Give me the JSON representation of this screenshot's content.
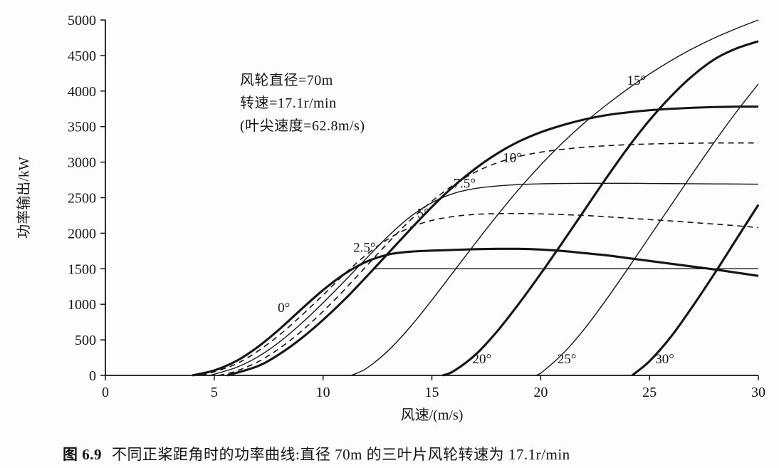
{
  "caption": {
    "prefix": "图 6.9",
    "text": "不同正桨距角时的功率曲线:直径 70m 的三叶片风轮转速为 17.1r/min"
  },
  "chart_data": {
    "type": "line",
    "title": "",
    "xlabel": "风速/(m/s)",
    "ylabel": "功率输出/kW",
    "xlim": [
      0,
      30
    ],
    "ylim": [
      0,
      5000
    ],
    "xticks": [
      0,
      5,
      10,
      15,
      20,
      25,
      30
    ],
    "yticks": [
      0,
      500,
      1000,
      1500,
      2000,
      2500,
      3000,
      3500,
      4000,
      4500,
      5000
    ],
    "grid": false,
    "annotation_lines": [
      "风轮直径=70m",
      "转速=17.1r/min",
      "(叶尖速度=62.8m/s)"
    ],
    "rated_power_line": {
      "y": 1500,
      "x_start": 12.3,
      "x_end": 30
    },
    "series": [
      {
        "name": "0°",
        "style": "thick",
        "points": [
          [
            4,
            0
          ],
          [
            5,
            70
          ],
          [
            6,
            200
          ],
          [
            7,
            400
          ],
          [
            8,
            650
          ],
          [
            9,
            930
          ],
          [
            10,
            1200
          ],
          [
            11,
            1430
          ],
          [
            12,
            1600
          ],
          [
            13,
            1700
          ],
          [
            14,
            1740
          ],
          [
            15,
            1755
          ],
          [
            16,
            1765
          ],
          [
            17,
            1775
          ],
          [
            18,
            1780
          ],
          [
            19,
            1780
          ],
          [
            20,
            1770
          ],
          [
            21,
            1750
          ],
          [
            22,
            1720
          ],
          [
            23,
            1690
          ],
          [
            24,
            1650
          ],
          [
            25,
            1610
          ],
          [
            26,
            1570
          ],
          [
            27,
            1530
          ],
          [
            28,
            1490
          ],
          [
            29,
            1445
          ],
          [
            30,
            1400
          ]
        ]
      },
      {
        "name": "2.5°",
        "style": "dashed",
        "points": [
          [
            4.4,
            0
          ],
          [
            5,
            50
          ],
          [
            6,
            160
          ],
          [
            7,
            340
          ],
          [
            8,
            570
          ],
          [
            9,
            840
          ],
          [
            10,
            1130
          ],
          [
            11,
            1430
          ],
          [
            12,
            1700
          ],
          [
            13,
            1920
          ],
          [
            14,
            2080
          ],
          [
            15,
            2180
          ],
          [
            16,
            2235
          ],
          [
            17,
            2265
          ],
          [
            18,
            2275
          ],
          [
            19,
            2278
          ],
          [
            20,
            2272
          ],
          [
            21,
            2262
          ],
          [
            22,
            2250
          ],
          [
            23,
            2232
          ],
          [
            24,
            2212
          ],
          [
            25,
            2192
          ],
          [
            26,
            2172
          ],
          [
            27,
            2150
          ],
          [
            28,
            2128
          ],
          [
            29,
            2105
          ],
          [
            30,
            2080
          ]
        ]
      },
      {
        "name": "5°",
        "style": "thin",
        "points": [
          [
            4.8,
            0
          ],
          [
            6,
            110
          ],
          [
            7,
            260
          ],
          [
            8,
            470
          ],
          [
            9,
            730
          ],
          [
            10,
            1020
          ],
          [
            11,
            1330
          ],
          [
            12,
            1650
          ],
          [
            13,
            1960
          ],
          [
            14,
            2230
          ],
          [
            15,
            2430
          ],
          [
            16,
            2560
          ],
          [
            17,
            2630
          ],
          [
            18,
            2665
          ],
          [
            19,
            2685
          ],
          [
            20,
            2695
          ],
          [
            21,
            2700
          ],
          [
            22,
            2702
          ],
          [
            23,
            2702
          ],
          [
            24,
            2702
          ],
          [
            25,
            2700
          ],
          [
            26,
            2698
          ],
          [
            27,
            2696
          ],
          [
            28,
            2694
          ],
          [
            29,
            2692
          ],
          [
            30,
            2690
          ]
        ]
      },
      {
        "name": "7.5°",
        "style": "dashed",
        "points": [
          [
            5.2,
            0
          ],
          [
            6,
            60
          ],
          [
            7,
            190
          ],
          [
            8,
            380
          ],
          [
            9,
            620
          ],
          [
            10,
            900
          ],
          [
            11,
            1210
          ],
          [
            12,
            1540
          ],
          [
            13,
            1870
          ],
          [
            14,
            2180
          ],
          [
            15,
            2450
          ],
          [
            16,
            2680
          ],
          [
            17,
            2860
          ],
          [
            18,
            2990
          ],
          [
            19,
            3080
          ],
          [
            20,
            3140
          ],
          [
            21,
            3180
          ],
          [
            22,
            3210
          ],
          [
            23,
            3230
          ],
          [
            24,
            3245
          ],
          [
            25,
            3255
          ],
          [
            26,
            3262
          ],
          [
            27,
            3266
          ],
          [
            28,
            3269
          ],
          [
            29,
            3270
          ],
          [
            30,
            3270
          ]
        ]
      },
      {
        "name": "10°",
        "style": "thick",
        "points": [
          [
            5.6,
            0
          ],
          [
            7,
            130
          ],
          [
            8,
            300
          ],
          [
            9,
            520
          ],
          [
            10,
            780
          ],
          [
            11,
            1070
          ],
          [
            12,
            1390
          ],
          [
            13,
            1720
          ],
          [
            14,
            2050
          ],
          [
            15,
            2370
          ],
          [
            16,
            2660
          ],
          [
            17,
            2910
          ],
          [
            18,
            3120
          ],
          [
            19,
            3290
          ],
          [
            20,
            3420
          ],
          [
            21,
            3520
          ],
          [
            22,
            3600
          ],
          [
            23,
            3660
          ],
          [
            24,
            3700
          ],
          [
            25,
            3730
          ],
          [
            26,
            3750
          ],
          [
            27,
            3765
          ],
          [
            28,
            3775
          ],
          [
            29,
            3780
          ],
          [
            30,
            3780
          ]
        ]
      },
      {
        "name": "15°",
        "style": "thin",
        "points": [
          [
            11.3,
            0
          ],
          [
            12,
            100
          ],
          [
            13,
            350
          ],
          [
            14,
            680
          ],
          [
            15,
            1060
          ],
          [
            16,
            1460
          ],
          [
            17,
            1860
          ],
          [
            18,
            2250
          ],
          [
            19,
            2620
          ],
          [
            20,
            2960
          ],
          [
            21,
            3270
          ],
          [
            22,
            3550
          ],
          [
            23,
            3800
          ],
          [
            24,
            4030
          ],
          [
            25,
            4240
          ],
          [
            26,
            4430
          ],
          [
            27,
            4600
          ],
          [
            28,
            4750
          ],
          [
            29,
            4880
          ],
          [
            30,
            5000
          ]
        ]
      },
      {
        "name": "20°",
        "style": "thick",
        "points": [
          [
            15.5,
            0
          ],
          [
            16,
            60
          ],
          [
            17,
            290
          ],
          [
            18,
            620
          ],
          [
            19,
            1010
          ],
          [
            20,
            1430
          ],
          [
            21,
            1870
          ],
          [
            22,
            2320
          ],
          [
            23,
            2770
          ],
          [
            24,
            3200
          ],
          [
            25,
            3590
          ],
          [
            26,
            3930
          ],
          [
            27,
            4220
          ],
          [
            28,
            4450
          ],
          [
            29,
            4600
          ],
          [
            30,
            4700
          ]
        ]
      },
      {
        "name": "25°",
        "style": "thin",
        "points": [
          [
            19.8,
            0
          ],
          [
            20,
            30
          ],
          [
            21,
            300
          ],
          [
            22,
            650
          ],
          [
            23,
            1060
          ],
          [
            24,
            1500
          ],
          [
            25,
            1950
          ],
          [
            26,
            2400
          ],
          [
            27,
            2850
          ],
          [
            28,
            3290
          ],
          [
            29,
            3710
          ],
          [
            30,
            4100
          ]
        ]
      },
      {
        "name": "30°",
        "style": "thick",
        "points": [
          [
            24.2,
            0
          ],
          [
            25,
            200
          ],
          [
            26,
            550
          ],
          [
            27,
            980
          ],
          [
            28,
            1440
          ],
          [
            29,
            1920
          ],
          [
            30,
            2400
          ]
        ]
      }
    ],
    "curve_labels": [
      {
        "text": "0°",
        "x": 8.2,
        "y": 950
      },
      {
        "text": "2.5°",
        "x": 11.9,
        "y": 1800
      },
      {
        "text": "5°",
        "x": 14.6,
        "y": 2280
      },
      {
        "text": "7.5°",
        "x": 16.5,
        "y": 2700
      },
      {
        "text": "10°",
        "x": 18.7,
        "y": 3060
      },
      {
        "text": "15°",
        "x": 24.4,
        "y": 4150
      },
      {
        "text": "20°",
        "x": 17.3,
        "y": 230
      },
      {
        "text": "25°",
        "x": 21.2,
        "y": 230
      },
      {
        "text": "30°",
        "x": 25.7,
        "y": 230
      }
    ],
    "line_color": "#151515"
  }
}
